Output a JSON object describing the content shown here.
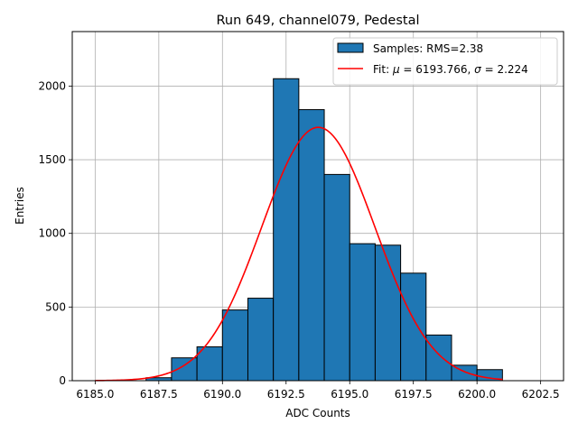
{
  "chart_data": {
    "type": "bar",
    "title": "Run 649, channel079, Pedestal",
    "xlabel": "ADC Counts",
    "ylabel": "Entries",
    "xlim": [
      6184.1,
      6203.4
    ],
    "ylim": [
      0,
      2370
    ],
    "xticks": [
      "6185.0",
      "6187.5",
      "6190.0",
      "6192.5",
      "6195.0",
      "6197.5",
      "6200.0",
      "6202.5"
    ],
    "xtick_values": [
      6185.0,
      6187.5,
      6190.0,
      6192.5,
      6195.0,
      6197.5,
      6200.0,
      6202.5
    ],
    "yticks": [
      "0",
      "500",
      "1000",
      "1500",
      "2000"
    ],
    "ytick_values": [
      0,
      500,
      1000,
      1500,
      2000
    ],
    "grid": true,
    "legend_position": "top-right",
    "series": [
      {
        "name": "Samples: RMS=2.38",
        "kind": "histogram",
        "color": "#1f77b4",
        "edgecolor": "#000000",
        "bin_edges": [
          6187.0,
          6188.0,
          6189.0,
          6190.0,
          6191.0,
          6192.0,
          6193.0,
          6194.0,
          6195.0,
          6196.0,
          6197.0,
          6198.0,
          6199.0,
          6200.0,
          6201.0
        ],
        "values": [
          20,
          155,
          230,
          480,
          560,
          2050,
          1840,
          1400,
          930,
          920,
          730,
          310,
          105,
          75
        ]
      },
      {
        "name": "Fit: $\\mu$ = 6193.766, $\\sigma$ = 2.224",
        "kind": "gaussian",
        "color": "#ff0000",
        "mu": 6193.766,
        "sigma": 2.224,
        "amplitude": 1720,
        "x_range": [
          6185.0,
          6201.0
        ]
      }
    ],
    "legend": [
      {
        "label_parts": [
          "Samples: RMS=2.38"
        ],
        "symbol": "patch"
      },
      {
        "label_parts": [
          "Fit: ",
          "μ",
          " = 6193.766, ",
          "σ",
          " = 2.224"
        ],
        "symbol": "line"
      }
    ]
  }
}
